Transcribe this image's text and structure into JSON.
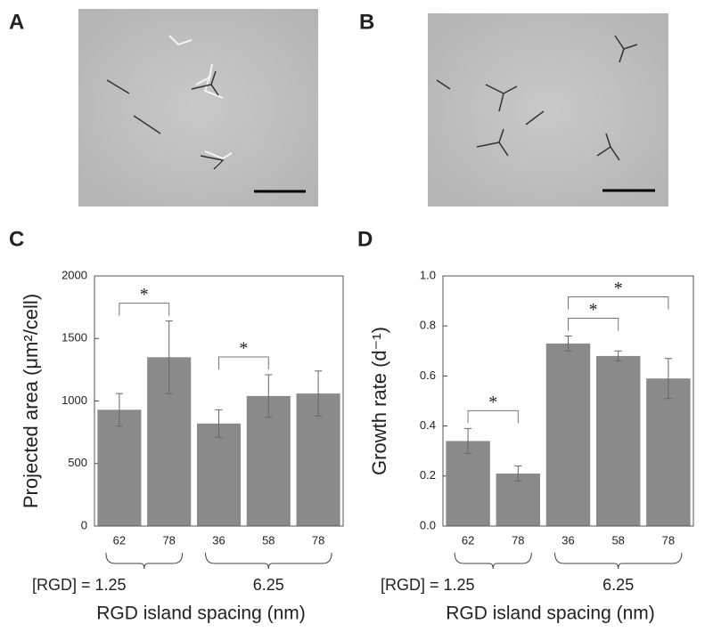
{
  "images": [
    {
      "label": "A"
    },
    {
      "label": "B"
    }
  ],
  "chart_data": [
    {
      "type": "bar",
      "label": "C",
      "y_label": "Projected area (μm²/cell)",
      "x_label": "RGD island spacing (nm)",
      "categories": [
        "62",
        "78",
        "36",
        "58",
        "78"
      ],
      "values": [
        930,
        1350,
        820,
        1040,
        1060
      ],
      "errors": [
        130,
        290,
        110,
        170,
        180
      ],
      "color": "#8a8a8a",
      "ylim": [
        0,
        2000
      ],
      "yticks": [
        0,
        500,
        1000,
        1500,
        2000
      ],
      "groups": [
        {
          "label": "[RGD] = 1.25",
          "from": 0,
          "to": 1
        },
        {
          "label": "6.25",
          "from": 2,
          "to": 4
        }
      ],
      "significance": [
        {
          "from": 0,
          "to": 1,
          "label": "*"
        },
        {
          "from": 2,
          "to": 3,
          "label": "*"
        }
      ]
    },
    {
      "type": "bar",
      "label": "D",
      "y_label": "Growth rate (d⁻¹)",
      "x_label": "RGD island spacing (nm)",
      "categories": [
        "62",
        "78",
        "36",
        "58",
        "78"
      ],
      "values": [
        0.34,
        0.21,
        0.73,
        0.68,
        0.59
      ],
      "errors": [
        0.05,
        0.03,
        0.03,
        0.02,
        0.08
      ],
      "color": "#8a8a8a",
      "ylim": [
        0,
        1
      ],
      "yticks": [
        {
          "value": 0,
          "label": "0.0"
        },
        0.2,
        0.4,
        0.6,
        0.8,
        {
          "value": 1,
          "label": "1.0"
        }
      ],
      "groups": [
        {
          "label": "[RGD] = 1.25",
          "from": 0,
          "to": 1
        },
        {
          "label": "6.25",
          "from": 2,
          "to": 4
        }
      ],
      "significance": [
        {
          "from": 0,
          "to": 1,
          "label": "*"
        },
        {
          "from": 2,
          "to": 3,
          "label": "*"
        },
        {
          "from": 2,
          "to": 4,
          "label": "*"
        }
      ]
    }
  ]
}
